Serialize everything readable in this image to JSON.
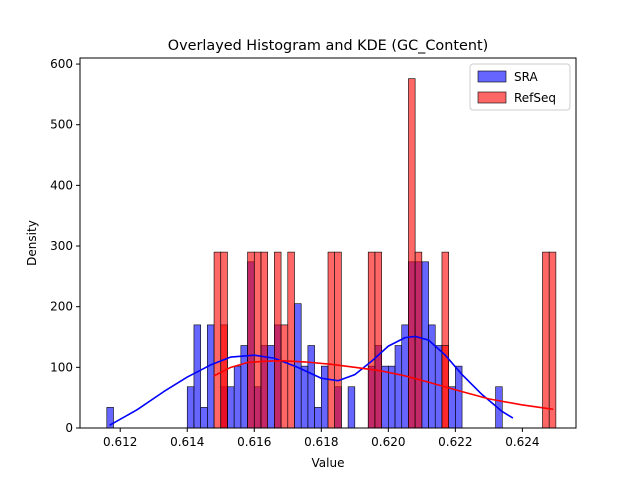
{
  "chart_data": {
    "type": "histogram",
    "title": "Overlayed Histogram and KDE (GC_Content)",
    "xlabel": "Value",
    "ylabel": "Density",
    "xlim": [
      0.6108,
      0.6256
    ],
    "ylim": [
      0,
      610
    ],
    "xticks": [
      0.612,
      0.614,
      0.616,
      0.618,
      0.62,
      0.622,
      0.624
    ],
    "xtick_labels": [
      "0.612",
      "0.614",
      "0.616",
      "0.618",
      "0.620",
      "0.622",
      "0.624"
    ],
    "yticks": [
      0,
      100,
      200,
      300,
      400,
      500,
      600
    ],
    "ytick_labels": [
      "0",
      "100",
      "200",
      "300",
      "400",
      "500",
      "600"
    ],
    "legend_position": "top-right",
    "series": [
      {
        "name": "SRA",
        "color": "#0000ff",
        "edge_color": "#000000",
        "opacity": 0.6,
        "bin_width": 0.0002,
        "bins": [
          [
            0.6116,
            34
          ],
          [
            0.614,
            68
          ],
          [
            0.6142,
            170
          ],
          [
            0.6144,
            34
          ],
          [
            0.6146,
            170
          ],
          [
            0.615,
            68
          ],
          [
            0.6152,
            68
          ],
          [
            0.6154,
            102
          ],
          [
            0.6156,
            136
          ],
          [
            0.6158,
            274
          ],
          [
            0.616,
            68
          ],
          [
            0.6162,
            136
          ],
          [
            0.6164,
            136
          ],
          [
            0.6166,
            170
          ],
          [
            0.6172,
            205
          ],
          [
            0.6174,
            102
          ],
          [
            0.6176,
            136
          ],
          [
            0.6178,
            34
          ],
          [
            0.618,
            102
          ],
          [
            0.6184,
            68
          ],
          [
            0.6188,
            68
          ],
          [
            0.6194,
            102
          ],
          [
            0.6196,
            136
          ],
          [
            0.6198,
            102
          ],
          [
            0.62,
            102
          ],
          [
            0.6202,
            136
          ],
          [
            0.6204,
            170
          ],
          [
            0.6206,
            274
          ],
          [
            0.6208,
            274
          ],
          [
            0.621,
            274
          ],
          [
            0.6212,
            170
          ],
          [
            0.6214,
            136
          ],
          [
            0.6218,
            68
          ],
          [
            0.622,
            102
          ],
          [
            0.6232,
            68
          ]
        ],
        "kde": {
          "x": [
            0.6117,
            0.6125,
            0.6133,
            0.614,
            0.6147,
            0.6153,
            0.616,
            0.6166,
            0.6173,
            0.618,
            0.6185,
            0.619,
            0.6195,
            0.62,
            0.6205,
            0.6208,
            0.6212,
            0.6217,
            0.6222,
            0.6228,
            0.6234,
            0.6237
          ],
          "y": [
            5,
            30,
            60,
            84,
            104,
            117,
            120,
            115,
            100,
            82,
            78,
            88,
            110,
            135,
            149,
            151,
            145,
            120,
            88,
            55,
            27,
            17
          ]
        }
      },
      {
        "name": "RefSeq",
        "color": "#ff0000",
        "edge_color": "#000000",
        "opacity": 0.6,
        "bin_width": 0.0002,
        "bins": [
          [
            0.6148,
            290
          ],
          [
            0.615,
            170
          ],
          [
            0.615,
            290
          ],
          [
            0.6158,
            290
          ],
          [
            0.616,
            290
          ],
          [
            0.6162,
            290
          ],
          [
            0.6166,
            290
          ],
          [
            0.6168,
            170
          ],
          [
            0.617,
            290
          ],
          [
            0.6182,
            290
          ],
          [
            0.6184,
            290
          ],
          [
            0.6194,
            290
          ],
          [
            0.6196,
            290
          ],
          [
            0.6206,
            576
          ],
          [
            0.6208,
            290
          ],
          [
            0.6216,
            290
          ],
          [
            0.6216,
            136
          ],
          [
            0.6246,
            290
          ],
          [
            0.6248,
            290
          ]
        ],
        "kde": {
          "x": [
            0.6148,
            0.6153,
            0.6158,
            0.6163,
            0.6168,
            0.6175,
            0.6183,
            0.619,
            0.6198,
            0.6205,
            0.6213,
            0.6222,
            0.623,
            0.624,
            0.6249
          ],
          "y": [
            86,
            100,
            108,
            110,
            111,
            109,
            105,
            100,
            94,
            86,
            74,
            60,
            48,
            38,
            31
          ]
        }
      }
    ]
  }
}
